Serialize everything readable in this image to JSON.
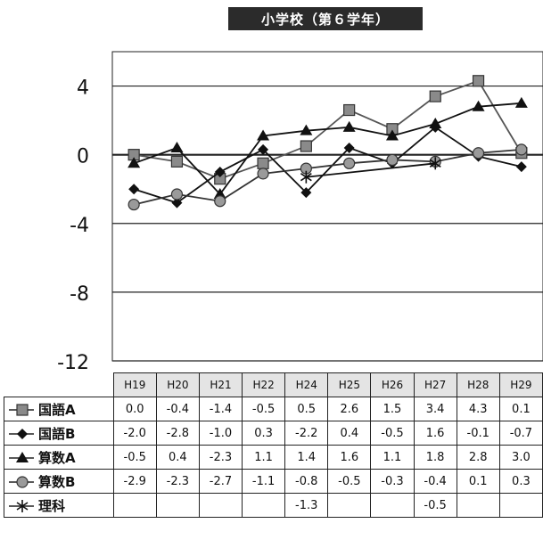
{
  "title": "小学校（第６学年）",
  "chart_data": {
    "type": "line",
    "title": "小学校（第６学年）",
    "categories": [
      "H19",
      "H20",
      "H21",
      "H22",
      "H24",
      "H25",
      "H26",
      "H27",
      "H28",
      "H29"
    ],
    "ylim": [
      -12,
      6
    ],
    "yticks": [
      4,
      0,
      -4,
      -8,
      -12
    ],
    "grid": true,
    "legend_placement": "table-left",
    "series": [
      {
        "name": "国語A",
        "marker": "square",
        "color": "#555555",
        "values": [
          0.0,
          -0.4,
          -1.4,
          -0.5,
          0.5,
          2.6,
          1.5,
          3.4,
          4.3,
          0.1
        ],
        "labels": [
          "0.0",
          "-0.4",
          "-1.4",
          "-0.5",
          "0.5",
          "2.6",
          "1.5",
          "3.4",
          "4.3",
          "0.1"
        ]
      },
      {
        "name": "国語B",
        "marker": "diamond",
        "color": "#111111",
        "values": [
          -2.0,
          -2.8,
          -1.0,
          0.3,
          -2.2,
          0.4,
          -0.5,
          1.6,
          -0.1,
          -0.7
        ],
        "labels": [
          "-2.0",
          "-2.8",
          "-1.0",
          "0.3",
          "-2.2",
          "0.4",
          "-0.5",
          "1.6",
          "-0.1",
          "-0.7"
        ]
      },
      {
        "name": "算数A",
        "marker": "triangle",
        "color": "#111111",
        "values": [
          -0.5,
          0.4,
          -2.3,
          1.1,
          1.4,
          1.6,
          1.1,
          1.8,
          2.8,
          3.0
        ],
        "labels": [
          "-0.5",
          "0.4",
          "-2.3",
          "1.1",
          "1.4",
          "1.6",
          "1.1",
          "1.8",
          "2.8",
          "3.0"
        ]
      },
      {
        "name": "算数B",
        "marker": "circle",
        "color": "#333333",
        "values": [
          -2.9,
          -2.3,
          -2.7,
          -1.1,
          -0.8,
          -0.5,
          -0.3,
          -0.4,
          0.1,
          0.3
        ],
        "labels": [
          "-2.9",
          "-2.3",
          "-2.7",
          "-1.1",
          "-0.8",
          "-0.5",
          "-0.3",
          "-0.4",
          "0.1",
          "0.3"
        ]
      },
      {
        "name": "理科",
        "marker": "star",
        "color": "#111111",
        "values": [
          null,
          null,
          null,
          null,
          -1.3,
          null,
          null,
          -0.5,
          null,
          null
        ],
        "labels": [
          "",
          "",
          "",
          "",
          "-1.3",
          "",
          "",
          "-0.5",
          "",
          ""
        ]
      }
    ]
  }
}
